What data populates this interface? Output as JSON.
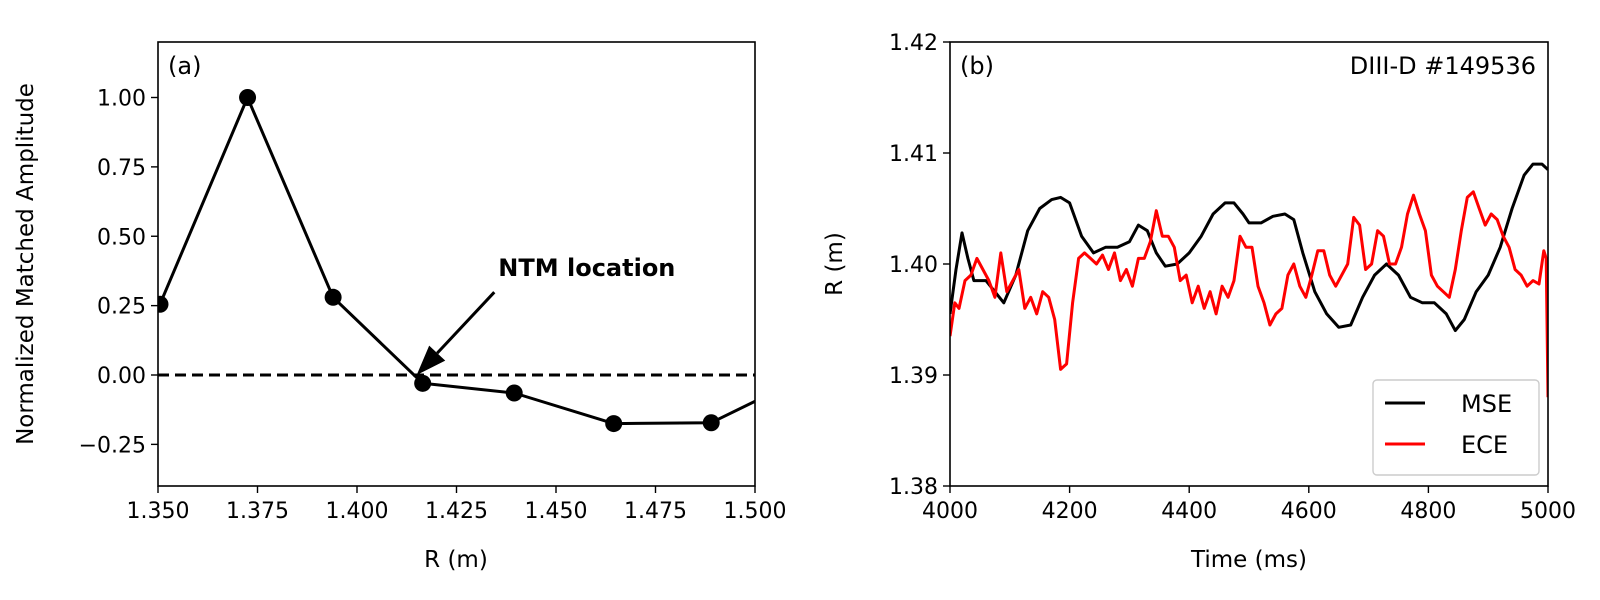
{
  "chart_data": [
    {
      "type": "line",
      "panel_label": "(a)",
      "xlabel": "R (m)",
      "ylabel": "Normalized Matched Amplitude",
      "xlim": [
        1.35,
        1.5
      ],
      "ylim": [
        -0.4,
        1.2
      ],
      "xticks": [
        1.35,
        1.375,
        1.4,
        1.425,
        1.45,
        1.475,
        1.5
      ],
      "xtick_labels": [
        "1.350",
        "1.375",
        "1.400",
        "1.425",
        "1.450",
        "1.475",
        "1.500"
      ],
      "yticks": [
        -0.25,
        0.0,
        0.25,
        0.5,
        0.75,
        1.0
      ],
      "ytick_labels": [
        "−0.25",
        "0.00",
        "0.25",
        "0.50",
        "0.75",
        "1.00"
      ],
      "grid": false,
      "series": [
        {
          "color": "#000000",
          "x": [
            1.3505,
            1.3725,
            1.394,
            1.4165,
            1.4395,
            1.4645,
            1.489,
            1.505
          ],
          "y": [
            0.255,
            1.0,
            0.28,
            -0.03,
            -0.065,
            -0.175,
            -0.172,
            -0.06
          ],
          "markers": 7
        }
      ],
      "hline": {
        "y": 0.0,
        "style": "dashed",
        "color": "#000000"
      },
      "annotation": {
        "text": "NTM location",
        "bold": true,
        "arrow_to": [
          1.415,
          0.0
        ],
        "text_at": [
          1.4355,
          0.32
        ]
      }
    },
    {
      "type": "line",
      "panel_label": "(b)",
      "title_right": "DIII-D #149536",
      "xlabel": "Time (ms)",
      "ylabel": "R (m)",
      "xlim": [
        4000,
        5000
      ],
      "ylim": [
        1.38,
        1.42
      ],
      "xticks": [
        4000,
        4200,
        4400,
        4600,
        4800,
        5000
      ],
      "xtick_labels": [
        "4000",
        "4200",
        "4400",
        "4600",
        "4800",
        "5000"
      ],
      "yticks": [
        1.38,
        1.39,
        1.4,
        1.41,
        1.42
      ],
      "ytick_labels": [
        "1.38",
        "1.39",
        "1.40",
        "1.41",
        "1.42"
      ],
      "grid": false,
      "legend": {
        "placement": "lower-right",
        "entries": [
          "MSE",
          "ECE"
        ]
      },
      "series": [
        {
          "name": "MSE",
          "color": "#000000",
          "x": [
            4000,
            4010,
            4020,
            4030,
            4040,
            4060,
            4090,
            4110,
            4130,
            4150,
            4170,
            4185,
            4200,
            4220,
            4240,
            4260,
            4280,
            4300,
            4315,
            4330,
            4345,
            4360,
            4380,
            4400,
            4420,
            4440,
            4460,
            4475,
            4490,
            4500,
            4520,
            4540,
            4560,
            4575,
            4590,
            4610,
            4630,
            4650,
            4670,
            4690,
            4710,
            4730,
            4750,
            4770,
            4790,
            4810,
            4830,
            4845,
            4860,
            4880,
            4900,
            4920,
            4940,
            4960,
            4975,
            4990,
            5000
          ],
          "y": [
            1.3955,
            1.3995,
            1.4028,
            1.4005,
            1.3985,
            1.3985,
            1.3965,
            1.399,
            1.403,
            1.405,
            1.4058,
            1.406,
            1.4055,
            1.4025,
            1.401,
            1.4015,
            1.4015,
            1.402,
            1.4035,
            1.403,
            1.401,
            1.3998,
            1.4,
            1.401,
            1.4025,
            1.4045,
            1.4055,
            1.4055,
            1.4045,
            1.4037,
            1.4037,
            1.4043,
            1.4045,
            1.404,
            1.401,
            1.3975,
            1.3955,
            1.3943,
            1.3945,
            1.397,
            1.399,
            1.4,
            1.399,
            1.397,
            1.3965,
            1.3965,
            1.3955,
            1.394,
            1.395,
            1.3975,
            1.399,
            1.4015,
            1.405,
            1.408,
            1.409,
            1.409,
            1.4085
          ]
        },
        {
          "name": "ECE",
          "color": "#ff0000",
          "x": [
            4000,
            4008,
            4015,
            4025,
            4035,
            4045,
            4055,
            4065,
            4075,
            4085,
            4095,
            4105,
            4115,
            4125,
            4135,
            4145,
            4155,
            4165,
            4175,
            4185,
            4195,
            4205,
            4215,
            4225,
            4235,
            4245,
            4255,
            4265,
            4275,
            4285,
            4295,
            4305,
            4315,
            4325,
            4335,
            4345,
            4355,
            4365,
            4375,
            4385,
            4395,
            4405,
            4415,
            4425,
            4435,
            4445,
            4455,
            4465,
            4475,
            4485,
            4495,
            4505,
            4515,
            4525,
            4535,
            4545,
            4555,
            4565,
            4575,
            4585,
            4595,
            4605,
            4615,
            4625,
            4635,
            4645,
            4655,
            4665,
            4675,
            4685,
            4695,
            4705,
            4715,
            4725,
            4735,
            4745,
            4755,
            4765,
            4775,
            4785,
            4795,
            4805,
            4815,
            4825,
            4835,
            4845,
            4855,
            4865,
            4875,
            4885,
            4895,
            4905,
            4915,
            4925,
            4935,
            4945,
            4955,
            4965,
            4975,
            4985,
            4993,
            4997,
            5000
          ],
          "y": [
            1.3935,
            1.3965,
            1.396,
            1.3985,
            1.399,
            1.4005,
            1.3995,
            1.3985,
            1.397,
            1.401,
            1.3975,
            1.3985,
            1.3995,
            1.396,
            1.397,
            1.3955,
            1.3975,
            1.397,
            1.395,
            1.3905,
            1.391,
            1.3965,
            1.4005,
            1.401,
            1.4005,
            1.4,
            1.4008,
            1.3995,
            1.401,
            1.3985,
            1.3995,
            1.398,
            1.4005,
            1.4005,
            1.402,
            1.4048,
            1.4025,
            1.4025,
            1.4015,
            1.3985,
            1.399,
            1.3965,
            1.398,
            1.396,
            1.3975,
            1.3955,
            1.398,
            1.397,
            1.3985,
            1.4025,
            1.4015,
            1.4015,
            1.398,
            1.3965,
            1.3945,
            1.3955,
            1.396,
            1.399,
            1.4,
            1.398,
            1.397,
            1.399,
            1.4012,
            1.4012,
            1.399,
            1.398,
            1.399,
            1.4,
            1.4042,
            1.4035,
            1.3995,
            1.4,
            1.403,
            1.4025,
            1.4,
            1.4,
            1.4015,
            1.4045,
            1.4062,
            1.4045,
            1.403,
            1.399,
            1.398,
            1.3975,
            1.397,
            1.3995,
            1.403,
            1.406,
            1.4065,
            1.405,
            1.4035,
            1.4045,
            1.404,
            1.4025,
            1.4015,
            1.3995,
            1.399,
            1.398,
            1.3985,
            1.3982,
            1.4012,
            1.4005,
            1.388
          ]
        }
      ]
    }
  ]
}
